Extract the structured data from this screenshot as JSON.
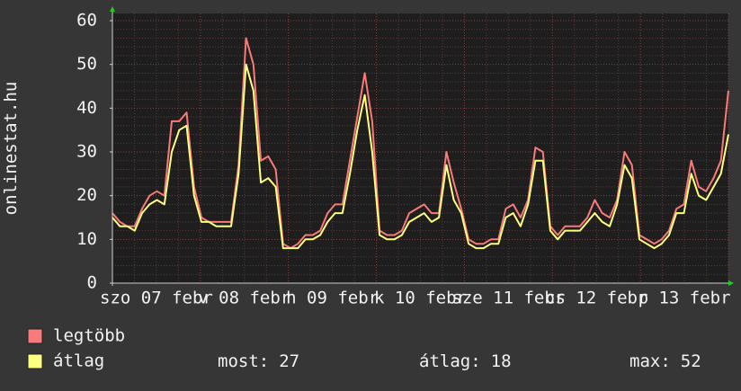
{
  "chart_data": {
    "type": "line",
    "y_axis_label": "onlinestat.hu",
    "day_labels": [
      "szo 07 febr",
      "v 08 febr",
      "h 09 febr",
      "k 10 febr",
      "sze 11 febr",
      "cs 12 febr",
      "p 13 febr"
    ],
    "ylim": [
      0,
      60
    ],
    "yticks": [
      0,
      10,
      20,
      30,
      40,
      50,
      60
    ],
    "grid": true,
    "series": [
      {
        "name": "legtöbb",
        "color": "#f87a7a",
        "values": [
          16,
          14,
          13,
          13,
          17,
          20,
          21,
          20,
          37,
          37,
          39,
          22,
          15,
          14,
          14,
          14,
          14,
          27,
          56,
          50,
          28,
          29,
          26,
          9,
          8,
          9,
          11,
          11,
          12,
          16,
          18,
          18,
          28,
          38,
          48,
          37,
          12,
          11,
          11,
          12,
          16,
          17,
          18,
          16,
          16,
          30,
          23,
          17,
          10,
          9,
          9,
          10,
          10,
          17,
          18,
          15,
          19,
          31,
          30,
          13,
          11,
          13,
          13,
          13,
          15,
          19,
          16,
          15,
          19,
          30,
          27,
          11,
          10,
          9,
          10,
          12,
          17,
          18,
          28,
          22,
          21,
          24,
          28,
          44
        ]
      },
      {
        "name": "átlag",
        "color": "#ffff80",
        "values": [
          15,
          13,
          13,
          12,
          16,
          18,
          19,
          18,
          30,
          35,
          36,
          20,
          14,
          14,
          13,
          13,
          13,
          25,
          50,
          44,
          23,
          24,
          22,
          8,
          8,
          8,
          10,
          10,
          11,
          14,
          16,
          16,
          25,
          35,
          43,
          30,
          11,
          10,
          10,
          11,
          14,
          15,
          16,
          14,
          15,
          27,
          19,
          16,
          9,
          8,
          8,
          9,
          9,
          15,
          16,
          13,
          18,
          28,
          28,
          12,
          10,
          12,
          12,
          12,
          14,
          16,
          14,
          13,
          18,
          27,
          24,
          10,
          9,
          8,
          9,
          11,
          16,
          16,
          25,
          20,
          19,
          22,
          25,
          34
        ]
      }
    ],
    "stats": [
      {
        "label": "most:",
        "value": 27
      },
      {
        "label": "átlag:",
        "value": 18
      },
      {
        "label": "max:",
        "value": 52
      }
    ]
  }
}
